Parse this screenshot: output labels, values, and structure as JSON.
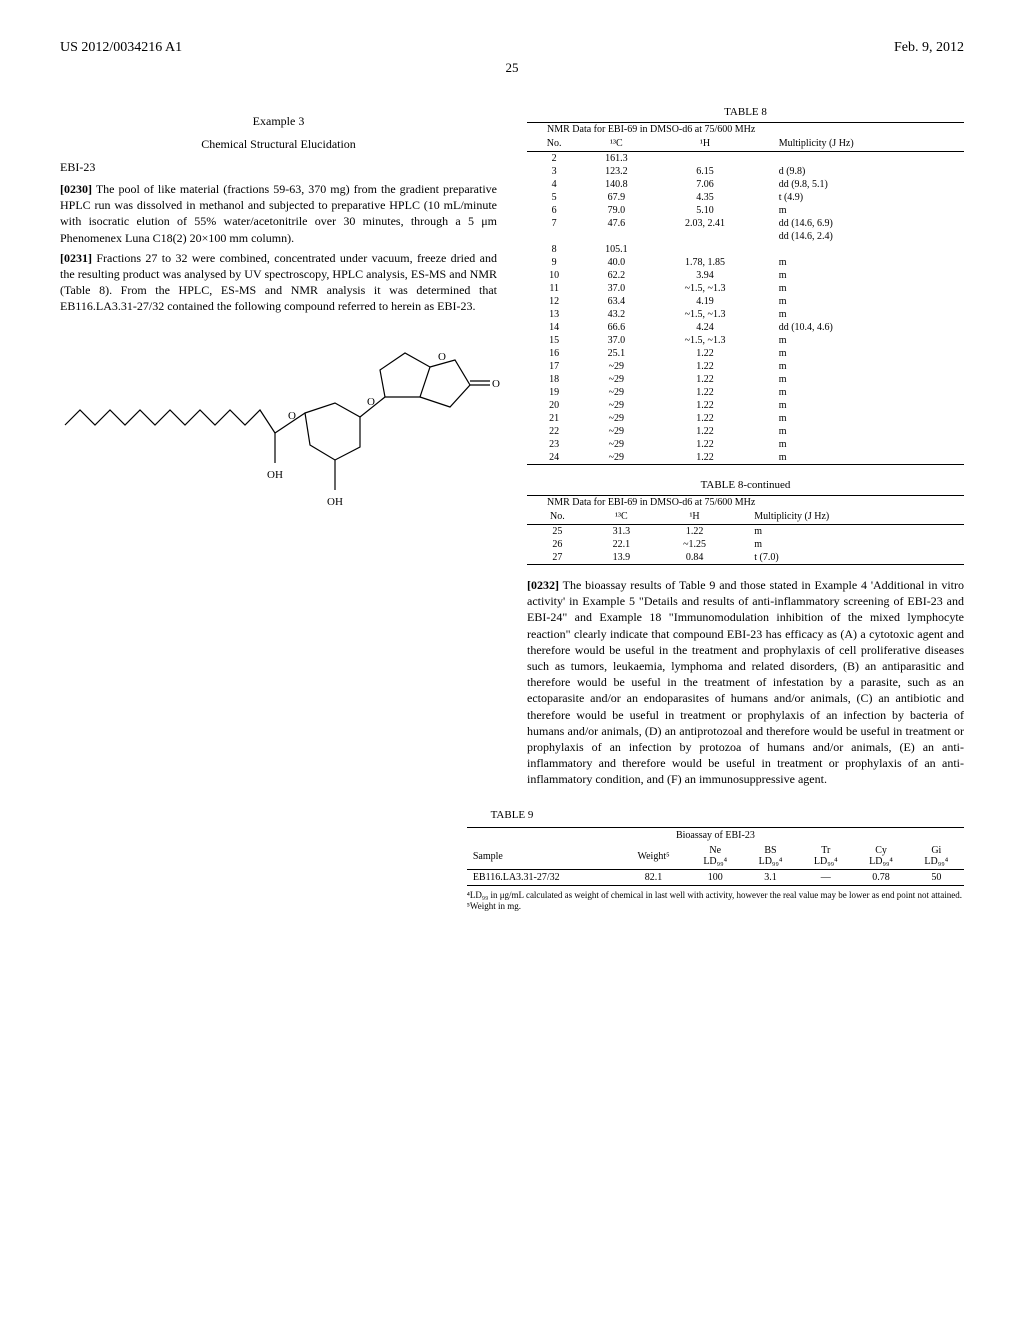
{
  "header": {
    "left": "US 2012/0034216 A1",
    "right": "Feb. 9, 2012"
  },
  "page_number": "25",
  "example": {
    "title": "Example 3",
    "subtitle": "Chemical Structural Elucidation",
    "section_label": "EBI-23"
  },
  "paragraphs": {
    "p0230": {
      "num": "[0230]",
      "text": "The pool of like material (fractions 59-63, 370 mg) from the gradient preparative HPLC run was dissolved in methanol and subjected to preparative HPLC (10 mL/minute with isocratic elution of 55% water/acetonitrile over 30 minutes, through a 5 μm Phenomenex Luna C18(2) 20×100 mm column)."
    },
    "p0231": {
      "num": "[0231]",
      "text": "Fractions 27 to 32 were combined, concentrated under vacuum, freeze dried and the resulting product was analysed by UV spectroscopy, HPLC analysis, ES-MS and NMR (Table 8). From the HPLC, ES-MS and NMR analysis it was determined that EB116.LA3.31-27/32 contained the following compound referred to herein as EBI-23."
    },
    "p0232": {
      "num": "[0232]",
      "text": "The bioassay results of Table 9 and those stated in Example 4 'Additional in vitro activity' in Example 5 \"Details and results of anti-inflammatory screening of EBI-23 and EBI-24\" and Example 18 \"Immunomodulation inhibition of the mixed lymphocyte reaction\" clearly indicate that compound EBI-23 has efficacy as (A) a cytotoxic agent and therefore would be useful in the treatment and prophylaxis of cell proliferative diseases such as tumors, leukaemia, lymphoma and related disorders, (B) an antiparasitic and therefore would be useful in the treatment of infestation by a parasite, such as an ectoparasite and/or an endoparasites of humans and/or animals, (C) an antibiotic and therefore would be useful in treatment or prophylaxis of an infection by bacteria of humans and/or animals, (D) an antiprotozoal and therefore would be useful in treatment or prophylaxis of an infection by protozoa of humans and/or animals, (E) an anti-inflammatory and therefore would be useful in treatment or prophylaxis of an anti-inflammatory condition, and (F) an immunosuppressive agent."
    }
  },
  "table8": {
    "title": "TABLE 8",
    "title_cont": "TABLE 8-continued",
    "caption": "NMR Data for EBI-69 in DMSO-d6 at 75/600 MHz",
    "headers": [
      "No.",
      "¹³C",
      "¹H",
      "Multiplicity (J Hz)"
    ],
    "rows_a": [
      [
        "2",
        "161.3",
        "",
        ""
      ],
      [
        "3",
        "123.2",
        "6.15",
        "d   (9.8)"
      ],
      [
        "4",
        "140.8",
        "7.06",
        "dd  (9.8, 5.1)"
      ],
      [
        "5",
        "67.9",
        "4.35",
        "t  (4.9)"
      ],
      [
        "6",
        "79.0",
        "5.10",
        "m"
      ],
      [
        "7",
        "47.6",
        "2.03, 2.41",
        "dd  (14.6, 6.9)"
      ],
      [
        "",
        "",
        "",
        "dd  (14.6, 2.4)"
      ],
      [
        "8",
        "105.1",
        "",
        ""
      ],
      [
        "9",
        "40.0",
        "1.78, 1.85",
        "m"
      ],
      [
        "10",
        "62.2",
        "3.94",
        "m"
      ],
      [
        "11",
        "37.0",
        "~1.5, ~1.3",
        "m"
      ],
      [
        "12",
        "63.4",
        "4.19",
        "m"
      ],
      [
        "13",
        "43.2",
        "~1.5, ~1.3",
        "m"
      ],
      [
        "14",
        "66.6",
        "4.24",
        "dd  (10.4, 4.6)"
      ],
      [
        "15",
        "37.0",
        "~1.5, ~1.3",
        "m"
      ],
      [
        "16",
        "25.1",
        "1.22",
        "m"
      ],
      [
        "17",
        "~29",
        "1.22",
        "m"
      ],
      [
        "18",
        "~29",
        "1.22",
        "m"
      ],
      [
        "19",
        "~29",
        "1.22",
        "m"
      ],
      [
        "20",
        "~29",
        "1.22",
        "m"
      ],
      [
        "21",
        "~29",
        "1.22",
        "m"
      ],
      [
        "22",
        "~29",
        "1.22",
        "m"
      ],
      [
        "23",
        "~29",
        "1.22",
        "m"
      ],
      [
        "24",
        "~29",
        "1.22",
        "m"
      ]
    ],
    "rows_b": [
      [
        "25",
        "31.3",
        "1.22",
        "m"
      ],
      [
        "26",
        "22.1",
        "~1.25",
        "m"
      ],
      [
        "27",
        "13.9",
        "0.84",
        "t  (7.0)"
      ]
    ]
  },
  "table9": {
    "title": "TABLE 9",
    "caption": "Bioassay of EBI-23",
    "col_groups": [
      "Sample",
      "Weight⁵",
      "Ne LD₉₉⁴",
      "BS LD₉₉⁴",
      "Tr LD₉₉⁴",
      "Cy LD₉₉⁴",
      "Gi LD₉₉⁴"
    ],
    "row": [
      "EB116.LA3.31-27/32",
      "82.1",
      "100",
      "3.1",
      "—",
      "0.78",
      "50"
    ],
    "footnotes": [
      "⁴LD₉₉ in μg/mL calculated as weight of chemical in last well with activity, however the real value may be lower as end point not attained.",
      "⁵Weight in mg."
    ]
  },
  "structure_labels": {
    "oh1": "OH",
    "oh2": "OH",
    "o1": "O",
    "o2": "O",
    "o3": "O",
    "o4": "O"
  }
}
